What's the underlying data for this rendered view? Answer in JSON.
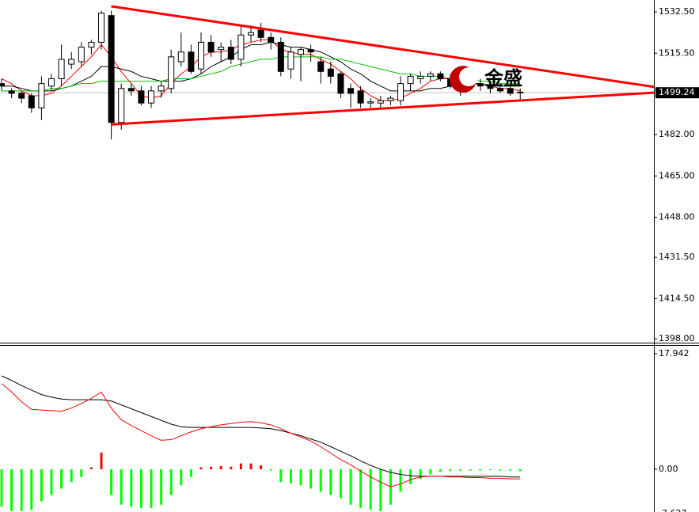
{
  "chart_data": [
    {
      "type": "candlestick",
      "open": [
        1503,
        1500,
        1499,
        1498,
        1493,
        1502,
        1505,
        1511,
        1512,
        1518,
        1520,
        1531,
        1487,
        1501,
        1500,
        1495,
        1500,
        1501,
        1512,
        1516,
        1509,
        1520,
        1517,
        1518,
        1513,
        1523,
        1525,
        1522,
        1520,
        1509,
        1515,
        1517,
        1512,
        1509,
        1507,
        1501,
        1500,
        1495,
        1495,
        1496,
        1496,
        1503,
        1505,
        1506,
        1507,
        1505,
        1502,
        1504,
        1503,
        1502,
        1501,
        1501,
        1499.5
      ],
      "high": [
        1505,
        1501,
        1500,
        1499,
        1506,
        1507,
        1519,
        1516,
        1520,
        1521,
        1533,
        1533,
        1503,
        1503,
        1502,
        1502,
        1504,
        1517,
        1524,
        1519,
        1524,
        1523,
        1520,
        1521,
        1527,
        1527,
        1528,
        1524,
        1522,
        1518,
        1518,
        1519,
        1514,
        1512,
        1508,
        1503,
        1502,
        1497,
        1498,
        1498,
        1506,
        1507,
        1508,
        1508,
        1508,
        1507,
        1506,
        1506,
        1505,
        1504,
        1503,
        1502,
        1501
      ],
      "low": [
        1500,
        1497,
        1495,
        1491,
        1488,
        1500,
        1502,
        1509,
        1510,
        1515,
        1517,
        1480,
        1484,
        1498,
        1494,
        1493,
        1497,
        1499,
        1510,
        1507,
        1507,
        1514,
        1512,
        1511,
        1510,
        1520,
        1520,
        1517,
        1506,
        1505,
        1504,
        1512,
        1503,
        1503,
        1497,
        1493,
        1493,
        1493,
        1493,
        1494,
        1494,
        1500,
        1503,
        1504,
        1504,
        1501,
        1498,
        1501,
        1500,
        1499,
        1499,
        1498,
        1496
      ],
      "close": [
        1502,
        1499,
        1497,
        1493,
        1503,
        1505,
        1513,
        1513,
        1518,
        1520,
        1532,
        1487,
        1501,
        1500,
        1495,
        1500,
        1502,
        1514,
        1516,
        1508,
        1520,
        1516,
        1518,
        1513,
        1523,
        1524,
        1522,
        1520,
        1508,
        1516,
        1517,
        1516,
        1508,
        1506,
        1499,
        1499,
        1495,
        1495.5,
        1496,
        1497,
        1503,
        1506,
        1506,
        1507,
        1505,
        1502,
        1504,
        1503,
        1502,
        1501,
        1500,
        1499,
        1499.24
      ],
      "up_color": "#ffffff",
      "down_color": "#000000",
      "lines": [
        {
          "color": "#ff0000",
          "values": [
            1505,
            1503,
            1500,
            1498,
            1498,
            1499,
            1502,
            1506,
            1510,
            1514,
            1519,
            1514,
            1508,
            1503,
            1498,
            1497,
            1498,
            1503,
            1507,
            1510,
            1514,
            1516,
            1516,
            1517,
            1519,
            1520,
            1521,
            1521,
            1517,
            1516,
            1515,
            1515,
            1513,
            1511,
            1508,
            1505,
            1501,
            1498,
            1496,
            1496,
            1497,
            1499,
            1501,
            1504,
            1505,
            1505,
            1504,
            1503,
            1503,
            1502,
            1501,
            1501,
            1500
          ]
        },
        {
          "color": "#000000",
          "values": [
            1502,
            1502,
            1501,
            1500,
            1500,
            1500,
            1501,
            1502,
            1504,
            1506,
            1510,
            1510,
            1509,
            1508,
            1506,
            1505,
            1504,
            1504,
            1504,
            1505,
            1507,
            1510,
            1512,
            1514,
            1517,
            1519,
            1519,
            1520,
            1519,
            1518,
            1518,
            1517,
            1516,
            1514,
            1512,
            1509,
            1507,
            1504,
            1502,
            1500,
            1500,
            1500,
            1500,
            1501,
            1501,
            1502,
            1502,
            1503,
            1503,
            1502,
            1502,
            1502,
            1502
          ]
        },
        {
          "color": "#00c000",
          "values": [
            1500,
            1500,
            1500,
            1500,
            1500,
            1501,
            1501,
            1502,
            1503,
            1503,
            1504,
            1504,
            1504,
            1504,
            1504,
            1504,
            1504,
            1505,
            1505,
            1505,
            1506,
            1507,
            1508,
            1510,
            1511,
            1512,
            1513,
            1513,
            1514,
            1514,
            1514,
            1514,
            1514,
            1513,
            1513,
            1512,
            1511,
            1510,
            1509,
            1508,
            1507,
            1507,
            1506,
            1506,
            1506,
            1505,
            1505,
            1505,
            1504,
            1504,
            1503,
            1503,
            1503
          ]
        }
      ],
      "trendlines": [
        {
          "color": "#ff0000",
          "x": [
            11,
            65.5
          ],
          "y": [
            1534.8,
            1501.6
          ]
        },
        {
          "color": "#ff0000",
          "x": [
            11,
            65.5
          ],
          "y": [
            1486.2,
            1499.3
          ]
        }
      ],
      "last_price": 1499.24,
      "watermark": "金盛",
      "ylim": [
        1396.4,
        1537.4
      ],
      "yticks": [
        {
          "value": 1532.5,
          "label": "1532.50"
        },
        {
          "value": 1515.5,
          "label": "1515.50"
        },
        {
          "value": 1482,
          "label": "1482.00"
        },
        {
          "value": 1465,
          "label": "1465.00"
        },
        {
          "value": 1448,
          "label": "1448.00"
        },
        {
          "value": 1431.5,
          "label": "1431.50"
        },
        {
          "value": 1414.5,
          "label": "1414.50"
        },
        {
          "value": 1398,
          "label": "1398.00"
        }
      ]
    },
    {
      "type": "macd",
      "histogram": [
        -5.8,
        -6.5,
        -6.5,
        -6.3,
        -5,
        -4,
        -3,
        -2,
        -1.2,
        0.3,
        2.6,
        -4,
        -5.5,
        -5.8,
        -6,
        -6,
        -5.5,
        -4,
        -2.5,
        -1.2,
        0.3,
        0.4,
        0.5,
        0.4,
        0.9,
        0.9,
        0.6,
        -0.2,
        -2,
        -2.2,
        -2.5,
        -3,
        -3.5,
        -4,
        -4.5,
        -5.5,
        -6,
        -6.3,
        -6.5,
        -5.5,
        -3.5,
        -2.3,
        -1.5,
        -0.8,
        -0.4,
        -0.3,
        -0.2,
        -0.2,
        -0.2,
        -0.1,
        -0.2,
        -0.2,
        -0.3
      ],
      "up_color": "#ff0000",
      "down_color": "#00ff00",
      "lines": [
        {
          "color": "#000000",
          "values": [
            14.5,
            13.8,
            13,
            12.3,
            11.6,
            11.2,
            10.9,
            10.8,
            10.8,
            10.8,
            10.8,
            10.6,
            10,
            9.4,
            8.8,
            8.2,
            7.6,
            7,
            6.6,
            6.5,
            6.5,
            6.5,
            6.5,
            6.5,
            6.5,
            6.5,
            6.4,
            6.3,
            6,
            5.6,
            5.2,
            4.7,
            4.2,
            3.5,
            2.8,
            2.1,
            1.3,
            0.6,
            0,
            -0.5,
            -0.8,
            -1,
            -1.1,
            -1.1,
            -1.1,
            -1.1,
            -1.1,
            -1.1,
            -1.1,
            -1.1,
            -1.1,
            -1.2,
            -1.2
          ]
        },
        {
          "color": "#ff0000",
          "values": [
            13.3,
            12,
            10.5,
            9.3,
            9.2,
            9.1,
            9,
            9.5,
            10.2,
            11,
            12,
            9.5,
            7.7,
            6.8,
            6,
            5.2,
            4.5,
            4.6,
            5.2,
            5.8,
            6.3,
            6.6,
            6.9,
            7.1,
            7.3,
            7.4,
            7.2,
            6.9,
            6.3,
            5.6,
            5,
            4.4,
            3.5,
            2.5,
            1.5,
            0.7,
            -0.3,
            -1.2,
            -2,
            -2.7,
            -2.3,
            -1.6,
            -1.2,
            -1.1,
            -1.1,
            -1.2,
            -1.2,
            -1.3,
            -1.3,
            -1.4,
            -1.4,
            -1.5,
            -1.5
          ]
        }
      ],
      "ylim": [
        -6.64,
        19.17
      ],
      "yticks": [
        17.942,
        {
          "value": 0,
          "label": "0.00"
        },
        -7.627
      ]
    }
  ]
}
